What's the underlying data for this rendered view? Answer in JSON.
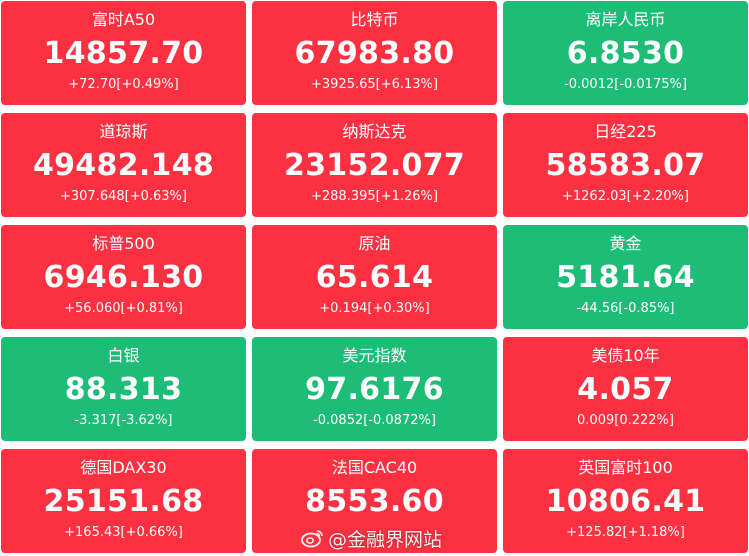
{
  "colors": {
    "up": "#fb3040",
    "down": "#1dbd78",
    "text": "#ffffff"
  },
  "tiles": [
    {
      "name": "富时A50",
      "price": "14857.70",
      "change": "+72.70[+0.49%]",
      "trend": "up"
    },
    {
      "name": "比特币",
      "price": "67983.80",
      "change": "+3925.65[+6.13%]",
      "trend": "up"
    },
    {
      "name": "离岸人民币",
      "price": "6.8530",
      "change": "-0.0012[-0.0175%]",
      "trend": "down"
    },
    {
      "name": "道琼斯",
      "price": "49482.148",
      "change": "+307.648[+0.63%]",
      "trend": "up"
    },
    {
      "name": "纳斯达克",
      "price": "23152.077",
      "change": "+288.395[+1.26%]",
      "trend": "up"
    },
    {
      "name": "日经225",
      "price": "58583.07",
      "change": "+1262.03[+2.20%]",
      "trend": "up"
    },
    {
      "name": "标普500",
      "price": "6946.130",
      "change": "+56.060[+0.81%]",
      "trend": "up"
    },
    {
      "name": "原油",
      "price": "65.614",
      "change": "+0.194[+0.30%]",
      "trend": "up"
    },
    {
      "name": "黄金",
      "price": "5181.64",
      "change": "-44.56[-0.85%]",
      "trend": "down"
    },
    {
      "name": "白银",
      "price": "88.313",
      "change": "-3.317[-3.62%]",
      "trend": "down"
    },
    {
      "name": "美元指数",
      "price": "97.6176",
      "change": "-0.0852[-0.0872%]",
      "trend": "down"
    },
    {
      "name": "美债10年",
      "price": "4.057",
      "change": "0.009[0.222%]",
      "trend": "up"
    },
    {
      "name": "德国DAX30",
      "price": "25151.68",
      "change": "+165.43[+0.66%]",
      "trend": "up"
    },
    {
      "name": "法国CAC40",
      "price": "8553.60",
      "change": "",
      "trend": "up"
    },
    {
      "name": "英国富时100",
      "price": "10806.41",
      "change": "+125.82[+1.18%]",
      "trend": "up"
    }
  ],
  "watermark": {
    "icon": "weibo-icon",
    "text": "@金融界网站"
  }
}
